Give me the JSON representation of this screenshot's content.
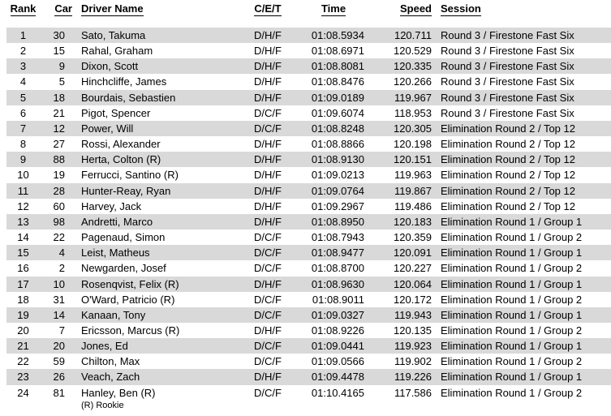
{
  "table": {
    "headers": [
      "Rank",
      "Car",
      "Driver Name",
      "C/E/T",
      "Time",
      "Speed",
      "Session"
    ],
    "rows": [
      [
        "1",
        "30",
        "Sato, Takuma",
        "D/H/F",
        "01:08.5934",
        "120.711",
        "Round 3 / Firestone Fast Six"
      ],
      [
        "2",
        "15",
        "Rahal, Graham",
        "D/H/F",
        "01:08.6971",
        "120.529",
        "Round 3 / Firestone Fast Six"
      ],
      [
        "3",
        "9",
        "Dixon, Scott",
        "D/H/F",
        "01:08.8081",
        "120.335",
        "Round 3 / Firestone Fast Six"
      ],
      [
        "4",
        "5",
        "Hinchcliffe, James",
        "D/H/F",
        "01:08.8476",
        "120.266",
        "Round 3 / Firestone Fast Six"
      ],
      [
        "5",
        "18",
        "Bourdais, Sebastien",
        "D/H/F",
        "01:09.0189",
        "119.967",
        "Round 3 / Firestone Fast Six"
      ],
      [
        "6",
        "21",
        "Pigot, Spencer",
        "D/C/F",
        "01:09.6074",
        "118.953",
        "Round 3 / Firestone Fast Six"
      ],
      [
        "7",
        "12",
        "Power, Will",
        "D/C/F",
        "01:08.8248",
        "120.305",
        "Elimination Round 2 / Top 12"
      ],
      [
        "8",
        "27",
        "Rossi, Alexander",
        "D/H/F",
        "01:08.8866",
        "120.198",
        "Elimination Round 2 / Top 12"
      ],
      [
        "9",
        "88",
        "Herta, Colton (R)",
        "D/H/F",
        "01:08.9130",
        "120.151",
        "Elimination Round 2 / Top 12"
      ],
      [
        "10",
        "19",
        "Ferrucci, Santino (R)",
        "D/H/F",
        "01:09.0213",
        "119.963",
        "Elimination Round 2 / Top 12"
      ],
      [
        "11",
        "28",
        "Hunter-Reay, Ryan",
        "D/H/F",
        "01:09.0764",
        "119.867",
        "Elimination Round 2 / Top 12"
      ],
      [
        "12",
        "60",
        "Harvey, Jack",
        "D/H/F",
        "01:09.2967",
        "119.486",
        "Elimination Round 2 / Top 12"
      ],
      [
        "13",
        "98",
        "Andretti, Marco",
        "D/H/F",
        "01:08.8950",
        "120.183",
        "Elimination Round 1 / Group 1"
      ],
      [
        "14",
        "22",
        "Pagenaud, Simon",
        "D/C/F",
        "01:08.7943",
        "120.359",
        "Elimination Round 1 / Group 2"
      ],
      [
        "15",
        "4",
        "Leist, Matheus",
        "D/C/F",
        "01:08.9477",
        "120.091",
        "Elimination Round 1 / Group 1"
      ],
      [
        "16",
        "2",
        "Newgarden, Josef",
        "D/C/F",
        "01:08.8700",
        "120.227",
        "Elimination Round 1 / Group 2"
      ],
      [
        "17",
        "10",
        "Rosenqvist, Felix (R)",
        "D/H/F",
        "01:08.9630",
        "120.064",
        "Elimination Round 1 / Group 1"
      ],
      [
        "18",
        "31",
        "O'Ward, Patricio (R)",
        "D/C/F",
        "01:08.9011",
        "120.172",
        "Elimination Round 1 / Group 2"
      ],
      [
        "19",
        "14",
        "Kanaan, Tony",
        "D/C/F",
        "01:09.0327",
        "119.943",
        "Elimination Round 1 / Group 1"
      ],
      [
        "20",
        "7",
        "Ericsson, Marcus (R)",
        "D/H/F",
        "01:08.9226",
        "120.135",
        "Elimination Round 1 / Group 2"
      ],
      [
        "21",
        "20",
        "Jones, Ed",
        "D/C/F",
        "01:09.0441",
        "119.923",
        "Elimination Round 1 / Group 1"
      ],
      [
        "22",
        "59",
        "Chilton, Max",
        "D/C/F",
        "01:09.0566",
        "119.902",
        "Elimination Round 1 / Group 2"
      ],
      [
        "23",
        "26",
        "Veach, Zach",
        "D/H/F",
        "01:09.4478",
        "119.226",
        "Elimination Round 1 / Group 1"
      ],
      [
        "24",
        "81",
        "Hanley, Ben (R)",
        "D/C/F",
        "01:10.4165",
        "117.586",
        "Elimination Round 1 / Group 2"
      ]
    ],
    "footnote": "(R) Rookie"
  },
  "colors": {
    "stripe": "#d9d9d9",
    "text": "#000000",
    "background": "#ffffff"
  }
}
